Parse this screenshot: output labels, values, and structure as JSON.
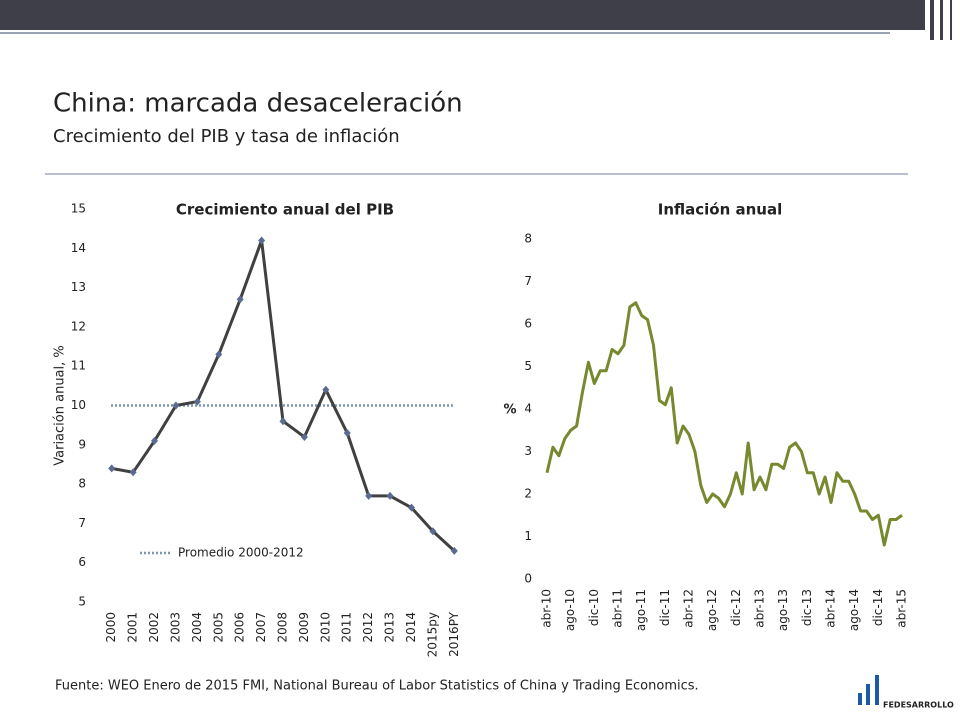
{
  "title": "China: marcada desaceleración",
  "subtitle": "Crecimiento del PIB y tasa de inflación",
  "source": "Fuente: WEO Enero de 2015 FMI, National Bureau of Labor Statistics of China y Trading Economics.",
  "logo": "FEDESARROLLO",
  "chart_data": [
    {
      "type": "line",
      "title": "Crecimiento anual del PIB",
      "y_label": "Variación anual, %",
      "categories": [
        "2000",
        "2001",
        "2002",
        "2003",
        "2004",
        "2005",
        "2006",
        "2007",
        "2008",
        "2009",
        "2010",
        "2011",
        "2012",
        "2013",
        "2014",
        "2015py",
        "2016PY"
      ],
      "series": [
        {
          "name": "Crecimiento anual del PIB",
          "color": "#404040",
          "marker_color": "#5b6a8f",
          "values": [
            8.4,
            8.3,
            9.1,
            10.0,
            10.1,
            11.3,
            12.7,
            14.2,
            9.6,
            9.2,
            10.4,
            9.3,
            7.7,
            7.7,
            7.4,
            6.8,
            6.3
          ]
        }
      ],
      "reference_line": {
        "name": "Promedio 2000-2012",
        "value": 10,
        "color": "#7f96b0"
      },
      "ylim": [
        5,
        15
      ],
      "yticks": [
        5,
        6,
        7,
        8,
        9,
        10,
        11,
        12,
        13,
        14,
        15
      ]
    },
    {
      "type": "line",
      "title": "Inflación anual",
      "y_label": "%",
      "categories": [
        "abr-10",
        null,
        null,
        null,
        "ago-10",
        null,
        null,
        null,
        "dic-10",
        null,
        null,
        null,
        "abr-11",
        null,
        null,
        null,
        "ago-11",
        null,
        null,
        null,
        "dic-11",
        null,
        null,
        null,
        "abr-12",
        null,
        null,
        null,
        "ago-12",
        null,
        null,
        null,
        "dic-12",
        null,
        null,
        null,
        "abr-13",
        null,
        null,
        null,
        "ago-13",
        null,
        null,
        null,
        "dic-13",
        null,
        null,
        null,
        "abr-14",
        null,
        null,
        null,
        "ago-14",
        null,
        null,
        null,
        "dic-14",
        null,
        null,
        null,
        "abr-15"
      ],
      "series": [
        {
          "name": "Inflación anual",
          "color": "#77892f",
          "values": [
            2.5,
            3.1,
            2.9,
            3.3,
            3.5,
            3.6,
            4.4,
            5.1,
            4.6,
            4.9,
            4.9,
            5.4,
            5.3,
            5.5,
            6.4,
            6.5,
            6.2,
            6.1,
            5.5,
            4.2,
            4.1,
            4.5,
            3.2,
            3.6,
            3.4,
            3.0,
            2.2,
            1.8,
            2.0,
            1.9,
            1.7,
            2.0,
            2.5,
            2.0,
            3.2,
            2.1,
            2.4,
            2.1,
            2.7,
            2.7,
            2.6,
            3.1,
            3.2,
            3.0,
            2.5,
            2.5,
            2.0,
            2.4,
            1.8,
            2.5,
            2.3,
            2.3,
            2.0,
            1.6,
            1.6,
            1.4,
            1.5,
            0.8,
            1.4,
            1.4,
            1.5
          ]
        }
      ],
      "ylim": [
        0,
        8
      ],
      "yticks": [
        0,
        1,
        2,
        3,
        4,
        5,
        6,
        7,
        8
      ]
    }
  ]
}
